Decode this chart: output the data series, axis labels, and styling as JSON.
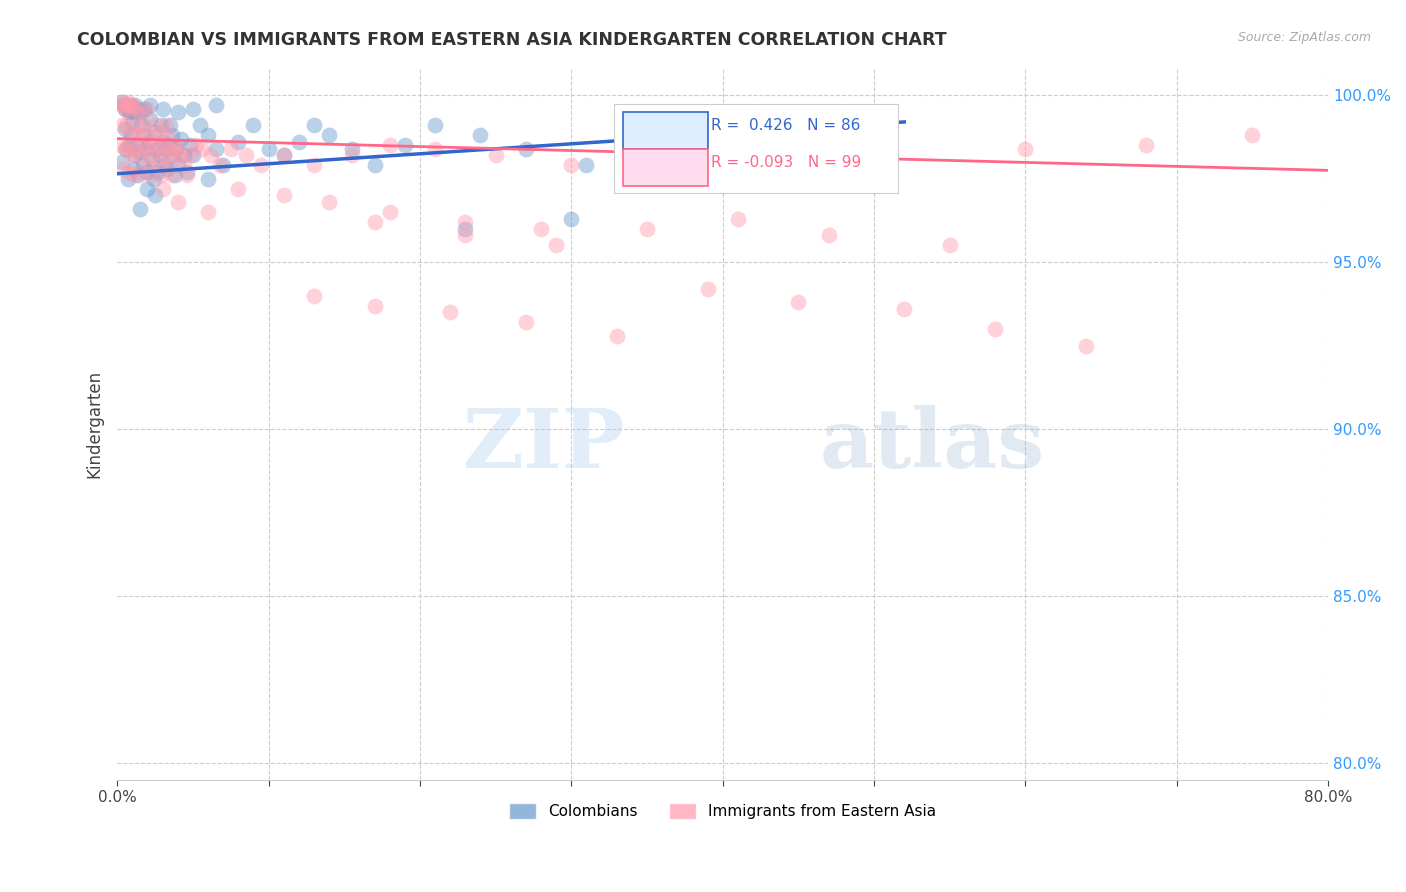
{
  "title": "COLOMBIAN VS IMMIGRANTS FROM EASTERN ASIA KINDERGARTEN CORRELATION CHART",
  "source": "Source: ZipAtlas.com",
  "ylabel": "Kindergarten",
  "xlim": [
    0.0,
    0.8
  ],
  "ylim": [
    0.795,
    1.008
  ],
  "xtick_positions": [
    0.0,
    0.1,
    0.2,
    0.3,
    0.4,
    0.5,
    0.6,
    0.7,
    0.8
  ],
  "xticklabels": [
    "0.0%",
    "",
    "",
    "",
    "",
    "",
    "",
    "",
    "80.0%"
  ],
  "ytick_positions": [
    0.8,
    0.85,
    0.9,
    0.95,
    1.0
  ],
  "yticklabels": [
    "80.0%",
    "85.0%",
    "90.0%",
    "95.0%",
    "100.0%"
  ],
  "legend_labels": [
    "Colombians",
    "Immigrants from Eastern Asia"
  ],
  "r_colombians": 0.426,
  "n_colombians": 86,
  "r_eastern_asia": -0.093,
  "n_eastern_asia": 99,
  "blue_color": "#6699CC",
  "pink_color": "#FF99AA",
  "line_blue": "#3366CC",
  "line_pink": "#FF6688",
  "watermark_zip": "ZIP",
  "watermark_atlas": "atlas",
  "blue_line_x": [
    0.0,
    0.52
  ],
  "blue_line_y": [
    0.9765,
    0.992
  ],
  "pink_line_x": [
    0.0,
    0.8
  ],
  "pink_line_y": [
    0.987,
    0.9775
  ],
  "blue_scatter_x": [
    0.003,
    0.005,
    0.006,
    0.007,
    0.008,
    0.009,
    0.01,
    0.011,
    0.012,
    0.013,
    0.014,
    0.015,
    0.016,
    0.017,
    0.018,
    0.019,
    0.02,
    0.021,
    0.022,
    0.023,
    0.024,
    0.025,
    0.026,
    0.027,
    0.028,
    0.029,
    0.03,
    0.031,
    0.032,
    0.033,
    0.034,
    0.035,
    0.036,
    0.037,
    0.038,
    0.039,
    0.04,
    0.042,
    0.044,
    0.046,
    0.048,
    0.05,
    0.055,
    0.06,
    0.065,
    0.07,
    0.08,
    0.09,
    0.1,
    0.11,
    0.12,
    0.13,
    0.14,
    0.155,
    0.17,
    0.19,
    0.21,
    0.24,
    0.27,
    0.31,
    0.003,
    0.004,
    0.005,
    0.006,
    0.007,
    0.008,
    0.009,
    0.01,
    0.011,
    0.012,
    0.013,
    0.015,
    0.018,
    0.022,
    0.03,
    0.04,
    0.05,
    0.065,
    0.35,
    0.42,
    0.015,
    0.02,
    0.025,
    0.06,
    0.23,
    0.3
  ],
  "blue_scatter_y": [
    0.98,
    0.99,
    0.984,
    0.975,
    0.985,
    0.988,
    0.992,
    0.978,
    0.982,
    0.985,
    0.976,
    0.983,
    0.991,
    0.979,
    0.988,
    0.984,
    0.977,
    0.986,
    0.993,
    0.981,
    0.975,
    0.989,
    0.984,
    0.977,
    0.982,
    0.991,
    0.986,
    0.979,
    0.984,
    0.978,
    0.985,
    0.991,
    0.988,
    0.982,
    0.976,
    0.984,
    0.979,
    0.987,
    0.982,
    0.977,
    0.985,
    0.982,
    0.991,
    0.988,
    0.984,
    0.979,
    0.986,
    0.991,
    0.984,
    0.982,
    0.986,
    0.991,
    0.988,
    0.984,
    0.979,
    0.985,
    0.991,
    0.988,
    0.984,
    0.979,
    0.998,
    0.997,
    0.996,
    0.997,
    0.996,
    0.995,
    0.997,
    0.996,
    0.995,
    0.997,
    0.996,
    0.995,
    0.996,
    0.997,
    0.996,
    0.995,
    0.996,
    0.997,
    0.985,
    0.991,
    0.966,
    0.972,
    0.97,
    0.975,
    0.96,
    0.963
  ],
  "pink_scatter_x": [
    0.002,
    0.003,
    0.004,
    0.005,
    0.006,
    0.007,
    0.008,
    0.009,
    0.01,
    0.011,
    0.012,
    0.013,
    0.014,
    0.015,
    0.016,
    0.017,
    0.018,
    0.019,
    0.02,
    0.021,
    0.022,
    0.023,
    0.024,
    0.025,
    0.026,
    0.027,
    0.028,
    0.029,
    0.03,
    0.031,
    0.032,
    0.033,
    0.034,
    0.035,
    0.036,
    0.037,
    0.038,
    0.04,
    0.042,
    0.044,
    0.046,
    0.048,
    0.052,
    0.056,
    0.062,
    0.068,
    0.075,
    0.085,
    0.095,
    0.11,
    0.13,
    0.155,
    0.18,
    0.21,
    0.25,
    0.3,
    0.36,
    0.43,
    0.51,
    0.6,
    0.68,
    0.75,
    0.003,
    0.004,
    0.005,
    0.006,
    0.007,
    0.008,
    0.009,
    0.01,
    0.012,
    0.015,
    0.02,
    0.17,
    0.23,
    0.29,
    0.35,
    0.41,
    0.47,
    0.55,
    0.13,
    0.17,
    0.22,
    0.27,
    0.33,
    0.39,
    0.45,
    0.52,
    0.58,
    0.64,
    0.03,
    0.04,
    0.06,
    0.08,
    0.11,
    0.14,
    0.18,
    0.23,
    0.28
  ],
  "pink_scatter_y": [
    0.985,
    0.991,
    0.978,
    0.984,
    0.991,
    0.984,
    0.977,
    0.988,
    0.982,
    0.976,
    0.984,
    0.991,
    0.988,
    0.982,
    0.977,
    0.985,
    0.991,
    0.988,
    0.984,
    0.979,
    0.976,
    0.982,
    0.986,
    0.991,
    0.988,
    0.984,
    0.979,
    0.976,
    0.982,
    0.985,
    0.991,
    0.988,
    0.984,
    0.979,
    0.976,
    0.982,
    0.985,
    0.984,
    0.982,
    0.979,
    0.976,
    0.982,
    0.985,
    0.984,
    0.982,
    0.979,
    0.984,
    0.982,
    0.979,
    0.982,
    0.979,
    0.982,
    0.985,
    0.984,
    0.982,
    0.979,
    0.976,
    0.982,
    0.985,
    0.984,
    0.985,
    0.988,
    0.998,
    0.997,
    0.996,
    0.997,
    0.998,
    0.997,
    0.996,
    0.997,
    0.996,
    0.995,
    0.996,
    0.962,
    0.958,
    0.955,
    0.96,
    0.963,
    0.958,
    0.955,
    0.94,
    0.937,
    0.935,
    0.932,
    0.928,
    0.942,
    0.938,
    0.936,
    0.93,
    0.925,
    0.972,
    0.968,
    0.965,
    0.972,
    0.97,
    0.968,
    0.965,
    0.962,
    0.96
  ]
}
